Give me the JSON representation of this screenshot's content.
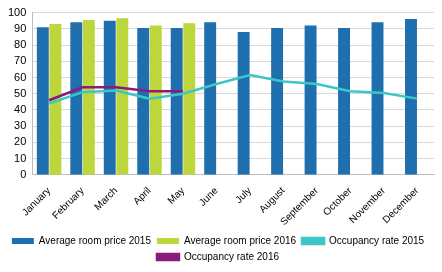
{
  "chart_data": {
    "type": "bar",
    "categories": [
      "January",
      "February",
      "March",
      "April",
      "May",
      "June",
      "July",
      "August",
      "September",
      "October",
      "November",
      "December"
    ],
    "series": [
      {
        "name": "Average room price 2015",
        "type": "bar",
        "color": "#1f6fae",
        "values": [
          91,
          94,
          95,
          90.5,
          90.5,
          94,
          88,
          90.5,
          92,
          90.5,
          94,
          96
        ]
      },
      {
        "name": "Average room price 2016",
        "type": "bar",
        "color": "#bcd63c",
        "values": [
          93,
          95.5,
          96.5,
          92,
          93.5,
          null,
          null,
          null,
          null,
          null,
          null,
          null
        ]
      },
      {
        "name": "Occupancy rate 2015",
        "type": "line",
        "color": "#3cc6c6",
        "marker": "none",
        "values": [
          44,
          51,
          52,
          47,
          50,
          56,
          61.5,
          57.5,
          56,
          51.5,
          50.5,
          47
        ]
      },
      {
        "name": "Occupancy rate 2016",
        "type": "line",
        "color": "#8b1a7d",
        "marker": "none",
        "values": [
          46,
          54,
          54,
          51.5,
          51.5,
          null,
          null,
          null,
          null,
          null,
          null,
          null
        ]
      }
    ],
    "ylim": [
      0,
      100
    ],
    "yticks": [
      0,
      10,
      20,
      30,
      40,
      50,
      60,
      70,
      80,
      90,
      100
    ],
    "grid": true,
    "legend": "bottom"
  }
}
